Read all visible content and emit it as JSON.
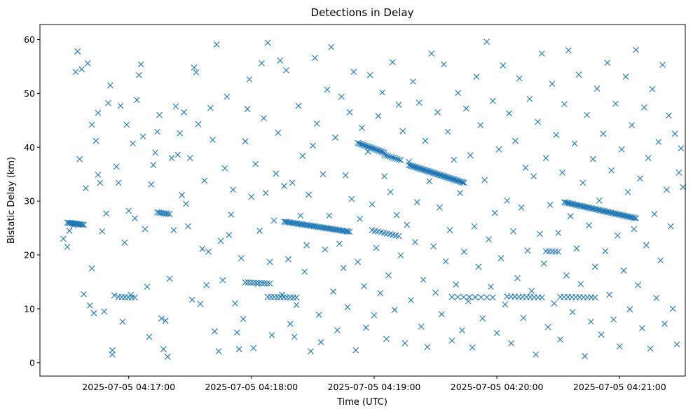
{
  "chart_data": {
    "type": "scatter",
    "title": "Detections in Delay",
    "xlabel": "Time (UTC)",
    "ylabel": "Bistatic Delay (km)",
    "marker": "x",
    "color": "#1f77b4",
    "grid": false,
    "xlim_seconds_after_041600": [
      16.6,
      332.1
    ],
    "ylim": [
      -2.5,
      62.8
    ],
    "x_ticks": [
      {
        "t": 60,
        "label": "2025-07-05 04:17:00"
      },
      {
        "t": 120,
        "label": "2025-07-05 04:18:00"
      },
      {
        "t": 180,
        "label": "2025-07-05 04:19:00"
      },
      {
        "t": 240,
        "label": "2025-07-05 04:20:00"
      },
      {
        "t": 300,
        "label": "2025-07-05 04:21:00"
      }
    ],
    "y_ticks": [
      {
        "v": 0,
        "label": "0"
      },
      {
        "v": 10,
        "label": "10"
      },
      {
        "v": 20,
        "label": "20"
      },
      {
        "v": 30,
        "label": "30"
      },
      {
        "v": 40,
        "label": "40"
      },
      {
        "v": 50,
        "label": "50"
      },
      {
        "v": 60,
        "label": "60"
      }
    ],
    "track_segments": [
      {
        "t0": 30,
        "t1": 38,
        "y0": 26.0,
        "y1": 25.6,
        "n": 14
      },
      {
        "t0": 55,
        "t1": 63,
        "y0": 12.2,
        "y1": 12.1,
        "n": 6
      },
      {
        "t0": 74,
        "t1": 80,
        "y0": 27.9,
        "y1": 27.6,
        "n": 8
      },
      {
        "t0": 117,
        "t1": 129,
        "y0": 14.9,
        "y1": 14.7,
        "n": 10
      },
      {
        "t0": 136,
        "t1": 168,
        "y0": 26.2,
        "y1": 24.3,
        "n": 45
      },
      {
        "t0": 128,
        "t1": 142,
        "y0": 12.2,
        "y1": 12.1,
        "n": 10
      },
      {
        "t0": 179,
        "t1": 192,
        "y0": 24.6,
        "y1": 23.5,
        "n": 10
      },
      {
        "t0": 172,
        "t1": 185,
        "y0": 40.8,
        "y1": 39.0,
        "n": 20
      },
      {
        "t0": 185,
        "t1": 193,
        "y0": 38.6,
        "y1": 37.6,
        "n": 10
      },
      {
        "t0": 197,
        "t1": 224,
        "y0": 36.7,
        "y1": 33.4,
        "n": 45
      },
      {
        "t0": 218,
        "t1": 238,
        "y0": 12.2,
        "y1": 12.1,
        "n": 8
      },
      {
        "t0": 245,
        "t1": 262,
        "y0": 12.3,
        "y1": 12.1,
        "n": 10
      },
      {
        "t0": 264,
        "t1": 270,
        "y0": 20.7,
        "y1": 20.6,
        "n": 5
      },
      {
        "t0": 271,
        "t1": 288,
        "y0": 12.2,
        "y1": 12.1,
        "n": 10
      },
      {
        "t0": 273,
        "t1": 308,
        "y0": 29.8,
        "y1": 26.8,
        "n": 50
      }
    ],
    "scatter_points": [
      [
        28,
        23.0
      ],
      [
        30,
        21.5
      ],
      [
        31,
        24.5
      ],
      [
        33,
        25.5
      ],
      [
        34,
        54.0
      ],
      [
        35,
        57.8
      ],
      [
        36,
        37.8
      ],
      [
        37,
        54.5
      ],
      [
        38,
        12.7
      ],
      [
        39,
        32.4
      ],
      [
        40,
        55.6
      ],
      [
        41,
        10.6
      ],
      [
        42,
        17.5
      ],
      [
        42,
        44.2
      ],
      [
        43,
        9.2
      ],
      [
        44,
        41.2
      ],
      [
        45,
        46.4
      ],
      [
        45,
        34.9
      ],
      [
        46,
        33.4
      ],
      [
        47,
        24.4
      ],
      [
        48,
        9.5
      ],
      [
        49,
        27.7
      ],
      [
        50,
        48.2
      ],
      [
        51,
        51.5
      ],
      [
        52,
        1.5
      ],
      [
        52,
        2.3
      ],
      [
        53,
        12.5
      ],
      [
        54,
        36.4
      ],
      [
        55,
        33.4
      ],
      [
        56,
        47.7
      ],
      [
        57,
        7.6
      ],
      [
        58,
        22.3
      ],
      [
        59,
        44.2
      ],
      [
        60,
        28.2
      ],
      [
        61,
        12.6
      ],
      [
        62,
        40.7
      ],
      [
        63,
        26.8
      ],
      [
        64,
        48.8
      ],
      [
        65,
        53.4
      ],
      [
        66,
        55.4
      ],
      [
        67,
        42.0
      ],
      [
        68,
        24.8
      ],
      [
        69,
        14.1
      ],
      [
        70,
        4.8
      ],
      [
        71,
        33.1
      ],
      [
        72,
        36.7
      ],
      [
        73,
        39.0
      ],
      [
        74,
        42.9
      ],
      [
        75,
        46.0
      ],
      [
        76,
        8.2
      ],
      [
        77,
        2.5
      ],
      [
        78,
        7.8
      ],
      [
        79,
        1.1
      ],
      [
        80,
        15.6
      ],
      [
        81,
        38.0
      ],
      [
        82,
        24.6
      ],
      [
        83,
        47.6
      ],
      [
        84,
        38.6
      ],
      [
        85,
        42.6
      ],
      [
        86,
        31.1
      ],
      [
        87,
        46.5
      ],
      [
        88,
        29.5
      ],
      [
        89,
        25.3
      ],
      [
        90,
        38.0
      ],
      [
        91,
        11.7
      ],
      [
        92,
        54.8
      ],
      [
        93,
        53.9
      ],
      [
        94,
        44.3
      ],
      [
        95,
        10.9
      ],
      [
        96,
        21.1
      ],
      [
        97,
        33.8
      ],
      [
        98,
        14.4
      ],
      [
        99,
        20.6
      ],
      [
        100,
        47.3
      ],
      [
        101,
        41.4
      ],
      [
        102,
        5.8
      ],
      [
        103,
        59.1
      ],
      [
        104,
        2.1
      ],
      [
        105,
        22.6
      ],
      [
        106,
        15.3
      ],
      [
        107,
        36.1
      ],
      [
        108,
        49.4
      ],
      [
        109,
        23.7
      ],
      [
        110,
        27.5
      ],
      [
        111,
        32.1
      ],
      [
        112,
        11.0
      ],
      [
        113,
        5.6
      ],
      [
        114,
        2.5
      ],
      [
        115,
        19.4
      ],
      [
        116,
        8.1
      ],
      [
        117,
        41.1
      ],
      [
        118,
        47.1
      ],
      [
        119,
        52.6
      ],
      [
        120,
        30.8
      ],
      [
        121,
        2.7
      ],
      [
        122,
        36.9
      ],
      [
        123,
        14.6
      ],
      [
        124,
        24.5
      ],
      [
        125,
        55.6
      ],
      [
        126,
        45.4
      ],
      [
        127,
        31.5
      ],
      [
        128,
        59.4
      ],
      [
        129,
        18.7
      ],
      [
        130,
        5.1
      ],
      [
        131,
        26.4
      ],
      [
        132,
        35.1
      ],
      [
        133,
        42.7
      ],
      [
        134,
        56.1
      ],
      [
        135,
        12.6
      ],
      [
        136,
        32.8
      ],
      [
        137,
        54.3
      ],
      [
        138,
        19.2
      ],
      [
        139,
        7.2
      ],
      [
        140,
        33.4
      ],
      [
        141,
        4.8
      ],
      [
        142,
        10.7
      ],
      [
        143,
        47.7
      ],
      [
        144,
        27.3
      ],
      [
        145,
        38.4
      ],
      [
        146,
        16.9
      ],
      [
        147,
        21.8
      ],
      [
        148,
        31.2
      ],
      [
        149,
        2.1
      ],
      [
        150,
        40.3
      ],
      [
        151,
        56.6
      ],
      [
        152,
        44.4
      ],
      [
        153,
        8.9
      ],
      [
        154,
        3.8
      ],
      [
        155,
        35.0
      ],
      [
        156,
        21.0
      ],
      [
        157,
        50.7
      ],
      [
        158,
        27.3
      ],
      [
        159,
        58.6
      ],
      [
        160,
        13.2
      ],
      [
        161,
        41.8
      ],
      [
        162,
        6.0
      ],
      [
        163,
        22.1
      ],
      [
        164,
        49.4
      ],
      [
        165,
        17.6
      ],
      [
        166,
        34.8
      ],
      [
        167,
        10.3
      ],
      [
        168,
        46.5
      ],
      [
        169,
        30.4
      ],
      [
        170,
        54.0
      ],
      [
        171,
        2.3
      ],
      [
        172,
        18.7
      ],
      [
        173,
        26.7
      ],
      [
        174,
        43.6
      ],
      [
        175,
        14.2
      ],
      [
        176,
        6.5
      ],
      [
        177,
        39.2
      ],
      [
        178,
        53.4
      ],
      [
        179,
        29.4
      ],
      [
        180,
        8.8
      ],
      [
        181,
        21.3
      ],
      [
        182,
        45.8
      ],
      [
        183,
        12.9
      ],
      [
        184,
        50.2
      ],
      [
        185,
        34.6
      ],
      [
        186,
        4.4
      ],
      [
        187,
        16.2
      ],
      [
        188,
        31.7
      ],
      [
        189,
        55.8
      ],
      [
        190,
        9.8
      ],
      [
        191,
        27.4
      ],
      [
        192,
        47.9
      ],
      [
        193,
        19.9
      ],
      [
        194,
        43.0
      ],
      [
        195,
        3.6
      ],
      [
        196,
        25.6
      ],
      [
        197,
        37.3
      ],
      [
        198,
        11.6
      ],
      [
        199,
        52.2
      ],
      [
        200,
        22.4
      ],
      [
        201,
        29.8
      ],
      [
        202,
        48.3
      ],
      [
        203,
        6.7
      ],
      [
        204,
        15.4
      ],
      [
        205,
        41.2
      ],
      [
        206,
        2.9
      ],
      [
        207,
        33.7
      ],
      [
        208,
        57.4
      ],
      [
        209,
        21.6
      ],
      [
        210,
        13.0
      ],
      [
        211,
        46.5
      ],
      [
        212,
        28.8
      ],
      [
        213,
        9.0
      ],
      [
        214,
        55.4
      ],
      [
        215,
        18.8
      ],
      [
        216,
        42.9
      ],
      [
        217,
        24.6
      ],
      [
        218,
        4.1
      ],
      [
        219,
        37.7
      ],
      [
        220,
        14.5
      ],
      [
        221,
        50.1
      ],
      [
        222,
        31.5
      ],
      [
        223,
        6.0
      ],
      [
        224,
        20.6
      ],
      [
        225,
        47.2
      ],
      [
        226,
        11.4
      ],
      [
        227,
        38.5
      ],
      [
        228,
        2.8
      ],
      [
        229,
        25.3
      ],
      [
        230,
        53.1
      ],
      [
        231,
        17.8
      ],
      [
        232,
        44.1
      ],
      [
        233,
        8.2
      ],
      [
        234,
        33.9
      ],
      [
        235,
        59.6
      ],
      [
        236,
        22.9
      ],
      [
        237,
        14.1
      ],
      [
        238,
        48.6
      ],
      [
        239,
        27.8
      ],
      [
        240,
        5.5
      ],
      [
        241,
        39.6
      ],
      [
        242,
        19.4
      ],
      [
        243,
        55.2
      ],
      [
        244,
        10.8
      ],
      [
        245,
        30.1
      ],
      [
        246,
        46.3
      ],
      [
        247,
        3.6
      ],
      [
        248,
        24.4
      ],
      [
        249,
        41.2
      ],
      [
        250,
        15.7
      ],
      [
        251,
        52.8
      ],
      [
        252,
        28.8
      ],
      [
        253,
        8.3
      ],
      [
        254,
        36.2
      ],
      [
        255,
        20.8
      ],
      [
        256,
        49.0
      ],
      [
        257,
        13.3
      ],
      [
        258,
        34.6
      ],
      [
        259,
        1.5
      ],
      [
        260,
        44.7
      ],
      [
        261,
        23.9
      ],
      [
        262,
        57.4
      ],
      [
        263,
        18.4
      ],
      [
        264,
        38.0
      ],
      [
        265,
        6.6
      ],
      [
        266,
        29.3
      ],
      [
        267,
        51.8
      ],
      [
        268,
        11.0
      ],
      [
        269,
        42.3
      ],
      [
        270,
        24.1
      ],
      [
        271,
        4.3
      ],
      [
        272,
        35.3
      ],
      [
        273,
        48.0
      ],
      [
        274,
        16.2
      ],
      [
        275,
        58.0
      ],
      [
        276,
        27.2
      ],
      [
        277,
        9.4
      ],
      [
        278,
        40.7
      ],
      [
        279,
        21.2
      ],
      [
        280,
        53.5
      ],
      [
        281,
        14.6
      ],
      [
        282,
        33.4
      ],
      [
        283,
        1.2
      ],
      [
        284,
        46.0
      ],
      [
        285,
        25.5
      ],
      [
        286,
        7.6
      ],
      [
        287,
        37.8
      ],
      [
        288,
        17.8
      ],
      [
        289,
        50.9
      ],
      [
        290,
        30.1
      ],
      [
        291,
        5.2
      ],
      [
        292,
        42.5
      ],
      [
        293,
        20.7
      ],
      [
        294,
        55.7
      ],
      [
        295,
        12.6
      ],
      [
        296,
        35.7
      ],
      [
        297,
        8.0
      ],
      [
        298,
        48.1
      ],
      [
        299,
        23.6
      ],
      [
        300,
        3.0
      ],
      [
        301,
        39.6
      ],
      [
        302,
        17.1
      ],
      [
        303,
        53.1
      ],
      [
        304,
        31.7
      ],
      [
        305,
        9.9
      ],
      [
        306,
        44.1
      ],
      [
        307,
        24.8
      ],
      [
        308,
        58.1
      ],
      [
        309,
        14.4
      ],
      [
        310,
        34.2
      ],
      [
        311,
        6.4
      ],
      [
        312,
        47.4
      ],
      [
        313,
        21.8
      ],
      [
        314,
        38.0
      ],
      [
        315,
        2.6
      ],
      [
        316,
        50.8
      ],
      [
        317,
        27.6
      ],
      [
        318,
        12.0
      ],
      [
        319,
        41.0
      ],
      [
        320,
        19.0
      ],
      [
        321,
        55.3
      ],
      [
        322,
        7.2
      ],
      [
        323,
        32.1
      ],
      [
        324,
        45.9
      ],
      [
        325,
        25.3
      ],
      [
        326,
        10.0
      ],
      [
        327,
        42.5
      ],
      [
        328,
        3.4
      ],
      [
        329,
        35.3
      ],
      [
        330,
        39.8
      ],
      [
        331,
        32.6
      ]
    ]
  }
}
